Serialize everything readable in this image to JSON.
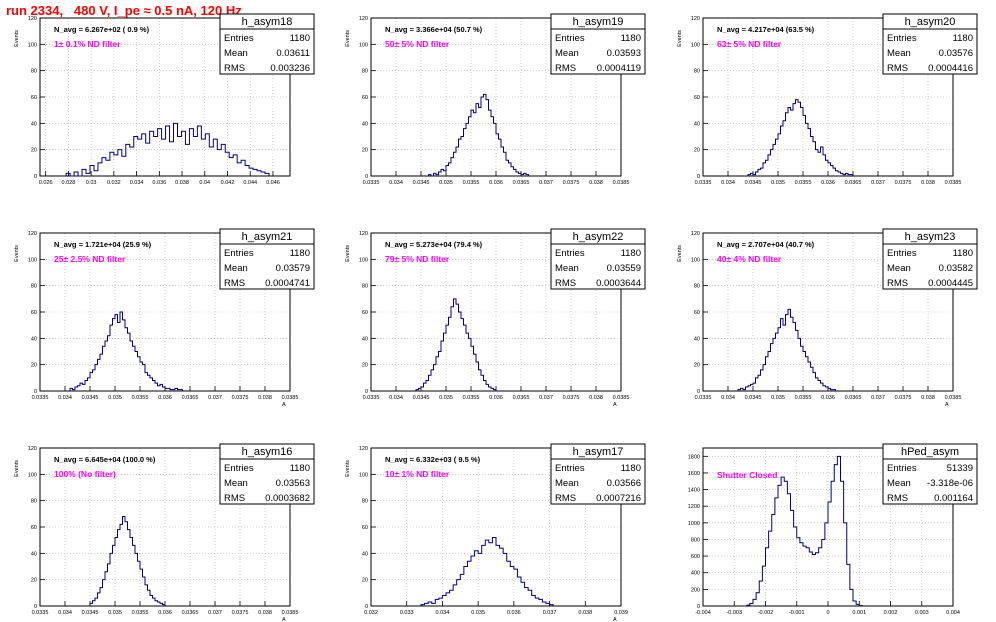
{
  "run_title": "run 2334,   480 V, I_pe ≈ 0.5 nA, 120 Hz",
  "colors": {
    "histogram": "#000080",
    "title": "#ff0000",
    "label": "#ff00ff",
    "grid": "#b0b0b0"
  },
  "stats_labels": {
    "entries": "Entries",
    "mean": "Mean",
    "rms": "RMS"
  },
  "chart_data": [
    {
      "type": "histogram",
      "name": "h_asym18",
      "navg": "N_avg = 6.267e+02 ( 0.9 %)",
      "label": "1± 0.1% ND filter",
      "stats": {
        "entries": "1180",
        "mean": "0.03611",
        "rms": "0.003236"
      },
      "ylabel": "Events",
      "xlabel": "",
      "xlim": [
        0.0255,
        0.0475
      ],
      "ylim": [
        0,
        120
      ],
      "xticks": [
        0.026,
        0.028,
        0.03,
        0.032,
        0.034,
        0.036,
        0.038,
        0.04,
        0.042,
        0.044,
        0.046
      ],
      "xtick_labels": [
        "0.026",
        "0.028",
        "0.03",
        "0.032",
        "0.034",
        "0.036",
        "0.038",
        "0.04",
        "0.042",
        "0.044",
        "0.046"
      ],
      "yticks": [
        0,
        20,
        40,
        60,
        80,
        100,
        120
      ],
      "bins": {
        "x0": 0.0278,
        "width": 0.00035,
        "counts": [
          2,
          0,
          3,
          0,
          5,
          2,
          8,
          4,
          10,
          14,
          12,
          18,
          16,
          20,
          15,
          24,
          22,
          30,
          28,
          32,
          25,
          34,
          30,
          36,
          28,
          38,
          26,
          40,
          30,
          34,
          24,
          36,
          30,
          38,
          28,
          32,
          22,
          28,
          20,
          24,
          18,
          14,
          16,
          10,
          12,
          8,
          6,
          5,
          4,
          3,
          2
        ]
      }
    },
    {
      "type": "histogram",
      "name": "h_asym19",
      "navg": "N_avg = 3.366e+04 (50.7 %)",
      "label": "50± 5% ND filter",
      "stats": {
        "entries": "1180",
        "mean": "0.03593",
        "rms": "0.0004119"
      },
      "ylabel": "Events",
      "xlabel": "",
      "xlim": [
        0.0335,
        0.0385
      ],
      "ylim": [
        0,
        120
      ],
      "xticks": [
        0.0335,
        0.034,
        0.0345,
        0.035,
        0.0355,
        0.036,
        0.0365,
        0.037,
        0.0375,
        0.038,
        0.0385
      ],
      "xtick_labels": [
        "0.0335",
        "0.034",
        "0.0345",
        "0.035",
        "0.0355",
        "0.036",
        "0.0365",
        "0.037",
        "0.0375",
        "0.038",
        "0.0385"
      ],
      "yticks": [
        0,
        20,
        40,
        60,
        80,
        100,
        120
      ],
      "bins": {
        "x0": 0.03465,
        "width": 5e-05,
        "counts": [
          1,
          0,
          2,
          1,
          3,
          5,
          4,
          8,
          10,
          14,
          18,
          22,
          28,
          30,
          36,
          40,
          45,
          50,
          48,
          55,
          52,
          60,
          62,
          58,
          50,
          45,
          40,
          32,
          28,
          22,
          18,
          12,
          10,
          7,
          5,
          3,
          2,
          1,
          2,
          1
        ]
      }
    },
    {
      "type": "histogram",
      "name": "h_asym20",
      "navg": "N_avg = 4.217e+04 (63.5 %)",
      "label": "63± 5% ND filter",
      "stats": {
        "entries": "1180",
        "mean": "0.03576",
        "rms": "0.0004416"
      },
      "ylabel": "Events",
      "xlabel": "",
      "xlim": [
        0.0335,
        0.0385
      ],
      "ylim": [
        0,
        120
      ],
      "xticks": [
        0.0335,
        0.034,
        0.0345,
        0.035,
        0.0355,
        0.036,
        0.0365,
        0.037,
        0.0375,
        0.038,
        0.0385
      ],
      "xtick_labels": [
        "0.0335",
        "0.034",
        "0.0345",
        "0.035",
        "0.0355",
        "0.036",
        "0.0365",
        "0.037",
        "0.0375",
        "0.038",
        "0.0385"
      ],
      "yticks": [
        0,
        20,
        40,
        60,
        80,
        100,
        120
      ],
      "bins": {
        "x0": 0.0344,
        "width": 5e-05,
        "counts": [
          1,
          2,
          1,
          3,
          5,
          6,
          10,
          12,
          16,
          20,
          24,
          28,
          32,
          38,
          42,
          48,
          52,
          50,
          55,
          58,
          56,
          52,
          46,
          40,
          36,
          30,
          26,
          20,
          18,
          22,
          16,
          12,
          10,
          8,
          6,
          4,
          3,
          2,
          1,
          2,
          1,
          1
        ]
      }
    },
    {
      "type": "histogram",
      "name": "h_asym21",
      "navg": "N_avg = 1.721e+04 (25.9 %)",
      "label": "25± 2.5% ND filter",
      "stats": {
        "entries": "1180",
        "mean": "0.03579",
        "rms": "0.0004741"
      },
      "ylabel": "Events",
      "xlabel": "A",
      "xlim": [
        0.0335,
        0.0385
      ],
      "ylim": [
        0,
        120
      ],
      "xticks": [
        0.0335,
        0.034,
        0.0345,
        0.035,
        0.0355,
        0.036,
        0.0365,
        0.037,
        0.0375,
        0.038,
        0.0385
      ],
      "xtick_labels": [
        "0.0335",
        "0.034",
        "0.0345",
        "0.035",
        "0.0355",
        "0.036",
        "0.0365",
        "0.037",
        "0.0375",
        "0.038",
        "0.0385"
      ],
      "yticks": [
        0,
        20,
        40,
        60,
        80,
        100,
        120
      ],
      "bins": {
        "x0": 0.0341,
        "width": 5e-05,
        "counts": [
          2,
          1,
          3,
          4,
          6,
          5,
          8,
          10,
          14,
          16,
          20,
          24,
          28,
          34,
          38,
          42,
          50,
          55,
          58,
          52,
          60,
          54,
          48,
          44,
          38,
          34,
          30,
          26,
          22,
          20,
          14,
          12,
          10,
          8,
          6,
          4,
          5,
          3,
          2,
          2,
          1,
          1,
          2,
          1,
          1
        ]
      }
    },
    {
      "type": "histogram",
      "name": "h_asym22",
      "navg": "N_avg = 5.273e+04 (79.4 %)",
      "label": "79± 5% ND filter",
      "stats": {
        "entries": "1180",
        "mean": "0.03559",
        "rms": "0.0003644"
      },
      "ylabel": "Events",
      "xlabel": "A",
      "xlim": [
        0.0335,
        0.0385
      ],
      "ylim": [
        0,
        120
      ],
      "xticks": [
        0.0335,
        0.034,
        0.0345,
        0.035,
        0.0355,
        0.036,
        0.0365,
        0.037,
        0.0375,
        0.038,
        0.0385
      ],
      "xtick_labels": [
        "0.0335",
        "0.034",
        "0.0345",
        "0.035",
        "0.0355",
        "0.036",
        "0.0365",
        "0.037",
        "0.0375",
        "0.038",
        "0.0385"
      ],
      "yticks": [
        0,
        20,
        40,
        60,
        80,
        100,
        120
      ],
      "bins": {
        "x0": 0.0344,
        "width": 5e-05,
        "counts": [
          1,
          2,
          3,
          6,
          8,
          12,
          16,
          20,
          26,
          30,
          38,
          44,
          50,
          56,
          64,
          70,
          66,
          60,
          55,
          50,
          44,
          40,
          34,
          28,
          22,
          16,
          12,
          8,
          5,
          3,
          2,
          1
        ]
      }
    },
    {
      "type": "histogram",
      "name": "h_asym23",
      "navg": "N_avg = 2.707e+04 (40.7 %)",
      "label": "40± 4% ND filter",
      "stats": {
        "entries": "1180",
        "mean": "0.03582",
        "rms": "0.0004445"
      },
      "ylabel": "Events",
      "xlabel": "A",
      "xlim": [
        0.0335,
        0.0385
      ],
      "ylim": [
        0,
        120
      ],
      "xticks": [
        0.0335,
        0.034,
        0.0345,
        0.035,
        0.0355,
        0.036,
        0.0365,
        0.037,
        0.0375,
        0.038,
        0.0385
      ],
      "xtick_labels": [
        "0.0335",
        "0.034",
        "0.0345",
        "0.035",
        "0.0355",
        "0.036",
        "0.0365",
        "0.037",
        "0.0375",
        "0.038",
        "0.0385"
      ],
      "yticks": [
        0,
        20,
        40,
        60,
        80,
        100,
        120
      ],
      "bins": {
        "x0": 0.0342,
        "width": 5e-05,
        "counts": [
          1,
          2,
          1,
          3,
          4,
          5,
          6,
          10,
          12,
          16,
          20,
          26,
          30,
          36,
          40,
          44,
          48,
          55,
          50,
          58,
          62,
          56,
          52,
          46,
          40,
          34,
          30,
          26,
          22,
          18,
          14,
          10,
          8,
          6,
          4,
          3,
          2,
          1,
          1
        ]
      }
    },
    {
      "type": "histogram",
      "name": "h_asym16",
      "navg": "N_avg = 6.645e+04 (100.0 %)",
      "label": "100% (No filter)",
      "stats": {
        "entries": "1180",
        "mean": "0.03563",
        "rms": "0.0003682"
      },
      "ylabel": "Events",
      "xlabel": "A",
      "xlim": [
        0.0335,
        0.0385
      ],
      "ylim": [
        0,
        120
      ],
      "xticks": [
        0.0335,
        0.034,
        0.0345,
        0.035,
        0.0355,
        0.036,
        0.0365,
        0.037,
        0.0375,
        0.038,
        0.0385
      ],
      "xtick_labels": [
        "0.0335",
        "0.034",
        "0.0345",
        "0.035",
        "0.0355",
        "0.036",
        "0.0365",
        "0.037",
        "0.0375",
        "0.038",
        "0.0385"
      ],
      "yticks": [
        0,
        20,
        40,
        60,
        80,
        100,
        120
      ],
      "bins": {
        "x0": 0.0345,
        "width": 5e-05,
        "counts": [
          2,
          4,
          6,
          10,
          14,
          20,
          26,
          32,
          40,
          46,
          52,
          58,
          62,
          68,
          64,
          58,
          52,
          46,
          40,
          34,
          28,
          22,
          16,
          12,
          8,
          6,
          4,
          3,
          2,
          1
        ]
      }
    },
    {
      "type": "histogram",
      "name": "h_asym17",
      "navg": "N_avg = 6.332e+03 ( 9.5 %)",
      "label": "10± 1% ND filter",
      "stats": {
        "entries": "1180",
        "mean": "0.03566",
        "rms": "0.0007216"
      },
      "ylabel": "Events",
      "xlabel": "A",
      "xlim": [
        0.032,
        0.039
      ],
      "ylim": [
        0,
        120
      ],
      "xticks": [
        0.032,
        0.033,
        0.034,
        0.035,
        0.036,
        0.037,
        0.038,
        0.039
      ],
      "xtick_labels": [
        "0.032",
        "0.033",
        "0.034",
        "0.035",
        "0.036",
        "0.037",
        "0.038",
        "0.039"
      ],
      "yticks": [
        0,
        20,
        40,
        60,
        80,
        100,
        120
      ],
      "bins": {
        "x0": 0.0334,
        "width": 0.0001,
        "counts": [
          1,
          2,
          3,
          2,
          5,
          6,
          8,
          10,
          12,
          16,
          20,
          24,
          30,
          34,
          38,
          42,
          40,
          46,
          50,
          48,
          52,
          46,
          44,
          40,
          34,
          30,
          28,
          22,
          18,
          14,
          12,
          8,
          6,
          5,
          3,
          2,
          1
        ]
      }
    },
    {
      "type": "histogram",
      "name": "hPed_asym",
      "navg": "",
      "label": "Shutter Closed",
      "stats": {
        "entries": "51339",
        "mean": "-3.318e-06",
        "rms": "0.001164"
      },
      "ylabel": "",
      "xlabel": "",
      "xlim": [
        -0.004,
        0.004
      ],
      "ylim": [
        0,
        1900
      ],
      "xticks": [
        -0.004,
        -0.003,
        -0.002,
        -0.001,
        0,
        0.001,
        0.002,
        0.003,
        0.004
      ],
      "xtick_labels": [
        "-0.004",
        "-0.003",
        "-0.002",
        "-0.001",
        "0",
        "0.001",
        "0.002",
        "0.003",
        "0.004"
      ],
      "yticks": [
        0,
        200,
        400,
        600,
        800,
        1000,
        1200,
        1400,
        1600,
        1800
      ],
      "bins": {
        "x0": -0.0026,
        "width": 0.0001,
        "counts": [
          10,
          30,
          80,
          160,
          300,
          480,
          700,
          900,
          1100,
          1300,
          1450,
          1550,
          1500,
          1350,
          1150,
          950,
          820,
          760,
          720,
          700,
          650,
          620,
          640,
          700,
          800,
          1000,
          1250,
          1500,
          1700,
          1800,
          1500,
          1000,
          500,
          200,
          60,
          20,
          5
        ]
      }
    }
  ]
}
